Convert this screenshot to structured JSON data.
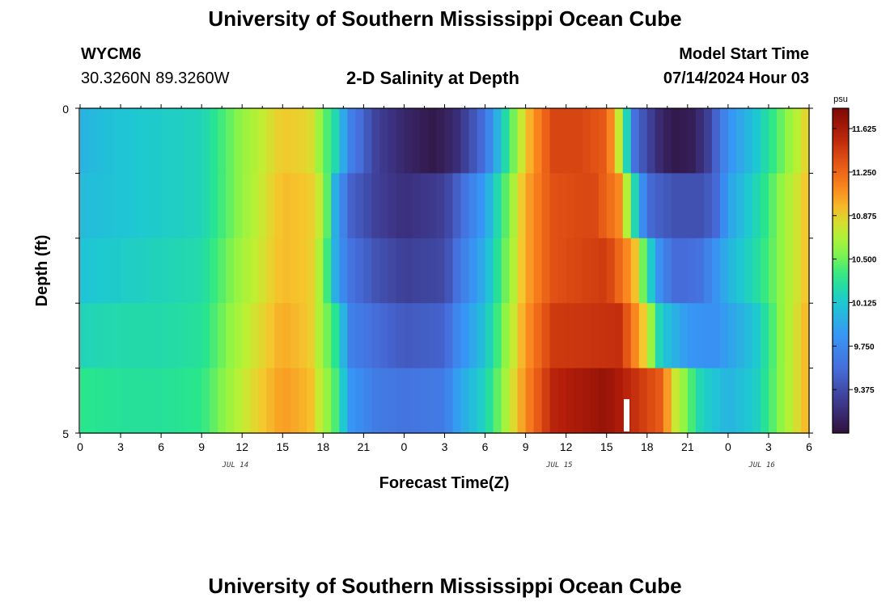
{
  "header": {
    "title": "University of Southern Mississippi Ocean Cube",
    "station": "WYCM6",
    "coords": "30.3260N  89.3260W",
    "plot_title": "2-D Salinity at Depth",
    "model_start_label": "Model Start Time",
    "model_start_value": "07/14/2024 Hour 03"
  },
  "footer": {
    "title": "University of Southern Mississippi Ocean Cube"
  },
  "chart_data": {
    "type": "heatmap",
    "title": "2-D Salinity at Depth",
    "xlabel": "Forecast Time(Z)",
    "ylabel": "Depth (ft)",
    "x_range_hours": [
      0,
      54
    ],
    "x_tick_labels": [
      "0",
      "3",
      "6",
      "9",
      "12",
      "15",
      "18",
      "21",
      "0",
      "3",
      "6",
      "9",
      "12",
      "15",
      "18",
      "21",
      "0",
      "3",
      "6"
    ],
    "date_labels": [
      {
        "text": "JUL 14",
        "hour": 11.5
      },
      {
        "text": "JUL 15",
        "hour": 35.5
      },
      {
        "text": "JUL 16",
        "hour": 50.5
      }
    ],
    "y_range": [
      0,
      5
    ],
    "y_tick_labels": [
      "0",
      "5"
    ],
    "depth_layers": 5,
    "colorbar": {
      "unit": "psu",
      "min": 9.0,
      "max": 11.8,
      "tick_values": [
        "11.625",
        "11.250",
        "10.875",
        "10.500",
        "10.125",
        "9.750",
        "9.375"
      ]
    },
    "salinity_profiles": [
      {
        "name": "depth 0-1 ft",
        "x": [
          0,
          3,
          6,
          9,
          12,
          15,
          17,
          19,
          20,
          22,
          24,
          26,
          27,
          28,
          30,
          33,
          35,
          37,
          39,
          40,
          40.5,
          41,
          42,
          43,
          44,
          45.5,
          46.5,
          48,
          50,
          52,
          54
        ],
        "values": [
          10.0,
          10.1,
          10.15,
          10.2,
          10.6,
          10.9,
          10.85,
          10.2,
          9.7,
          9.3,
          9.15,
          9.05,
          9.1,
          9.2,
          9.6,
          10.9,
          11.4,
          11.4,
          11.3,
          10.7,
          10.2,
          9.6,
          9.35,
          9.15,
          9.05,
          9.1,
          9.3,
          9.8,
          10.1,
          10.5,
          10.9
        ]
      },
      {
        "name": "depth 1-2 ft",
        "x": [
          0,
          3,
          6,
          9,
          12,
          15,
          17,
          18,
          19,
          20,
          22,
          24,
          27,
          28,
          30,
          33,
          35,
          38,
          40,
          41,
          42,
          44,
          46,
          47,
          48,
          50,
          52,
          54
        ],
        "values": [
          10.05,
          10.1,
          10.15,
          10.2,
          10.6,
          10.95,
          10.9,
          10.7,
          9.9,
          9.5,
          9.3,
          9.2,
          9.3,
          9.5,
          9.9,
          11.0,
          11.35,
          11.4,
          11.1,
          10.3,
          9.55,
          9.4,
          9.4,
          9.5,
          9.9,
          10.2,
          10.6,
          10.95
        ]
      },
      {
        "name": "depth 2-3 ft",
        "x": [
          0,
          3,
          6,
          9,
          12,
          15,
          17,
          18,
          19,
          20,
          22,
          24,
          27,
          28,
          30,
          33,
          35,
          39,
          41,
          42,
          43,
          44,
          45,
          46,
          47,
          48,
          50,
          52,
          54
        ],
        "values": [
          10.1,
          10.15,
          10.2,
          10.25,
          10.65,
          10.95,
          10.9,
          10.6,
          9.9,
          9.6,
          9.4,
          9.3,
          9.35,
          9.6,
          10.0,
          11.0,
          11.35,
          11.45,
          11.0,
          10.3,
          9.75,
          9.55,
          9.55,
          9.6,
          9.8,
          10.0,
          10.25,
          10.6,
          10.95
        ]
      },
      {
        "name": "depth 3-4 ft",
        "x": [
          0,
          3,
          6,
          9,
          12,
          15,
          17,
          19,
          20,
          22,
          24,
          27,
          28,
          30,
          33,
          35,
          40,
          42,
          43,
          45,
          47,
          50,
          52,
          54
        ],
        "values": [
          10.2,
          10.25,
          10.25,
          10.3,
          10.7,
          11.0,
          10.9,
          10.3,
          9.7,
          9.55,
          9.45,
          9.5,
          9.75,
          10.1,
          11.05,
          11.45,
          11.5,
          10.8,
          10.15,
          9.85,
          9.8,
          10.1,
          10.6,
          11.0
        ]
      },
      {
        "name": "depth 4-5 ft",
        "x": [
          0,
          3,
          6,
          9,
          12,
          15,
          17,
          19,
          20,
          22,
          24,
          27,
          28,
          30,
          33,
          35,
          39,
          43,
          44,
          46,
          48,
          50,
          52,
          54
        ],
        "values": [
          10.35,
          10.3,
          10.3,
          10.35,
          10.75,
          11.05,
          10.95,
          10.4,
          9.85,
          9.65,
          9.6,
          9.65,
          9.9,
          10.2,
          11.1,
          11.55,
          11.7,
          11.3,
          10.8,
          10.2,
          10.0,
          10.15,
          10.6,
          11.0
        ]
      }
    ]
  }
}
